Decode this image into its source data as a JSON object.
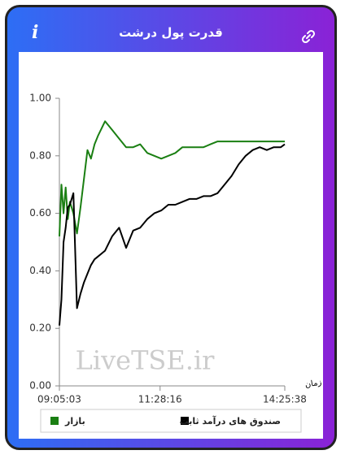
{
  "header": {
    "info_label": "i",
    "title": "قدرت پول درشت"
  },
  "watermark": "LiveTSE.ir",
  "chart_data": {
    "type": "line",
    "x_label": "زمان",
    "x": [
      "09:05:03",
      "09:08:00",
      "09:11:00",
      "09:14:00",
      "09:17:00",
      "09:20:00",
      "09:25:00",
      "09:30:00",
      "09:35:00",
      "09:40:00",
      "09:45:00",
      "09:50:00",
      "09:55:00",
      "10:00:00",
      "10:10:00",
      "10:20:00",
      "10:30:00",
      "10:40:00",
      "10:50:00",
      "11:00:00",
      "11:10:00",
      "11:20:00",
      "11:30:00",
      "11:40:00",
      "11:50:00",
      "12:00:00",
      "12:10:00",
      "12:20:00",
      "12:30:00",
      "12:40:00",
      "12:50:00",
      "13:00:00",
      "13:10:00",
      "13:20:00",
      "13:30:00",
      "13:40:00",
      "13:50:00",
      "14:00:00",
      "14:10:00",
      "14:20:00",
      "14:25:38"
    ],
    "series": [
      {
        "name": "بازار",
        "color": "#1a7f12",
        "values": [
          0.52,
          0.7,
          0.6,
          0.69,
          0.58,
          0.64,
          0.6,
          0.53,
          0.62,
          0.72,
          0.82,
          0.79,
          0.84,
          0.87,
          0.92,
          0.89,
          0.86,
          0.83,
          0.83,
          0.84,
          0.81,
          0.8,
          0.79,
          0.8,
          0.81,
          0.83,
          0.83,
          0.83,
          0.83,
          0.84,
          0.85,
          0.85,
          0.85,
          0.85,
          0.85,
          0.85,
          0.85,
          0.85,
          0.85,
          0.85,
          0.85
        ]
      },
      {
        "name": "صندوق های درآمد ثابت",
        "color": "#000000",
        "values": [
          0.21,
          0.3,
          0.5,
          0.55,
          0.62,
          0.63,
          0.67,
          0.27,
          0.32,
          0.36,
          0.39,
          0.42,
          0.44,
          0.45,
          0.47,
          0.52,
          0.55,
          0.48,
          0.54,
          0.55,
          0.58,
          0.6,
          0.61,
          0.63,
          0.63,
          0.64,
          0.65,
          0.65,
          0.66,
          0.66,
          0.67,
          0.7,
          0.73,
          0.77,
          0.8,
          0.82,
          0.83,
          0.82,
          0.83,
          0.83,
          0.84
        ]
      }
    ],
    "xlim": [
      "09:05:03",
      "14:25:38"
    ],
    "xticks": [
      "09:05:03",
      "11:28:16",
      "14:25:38"
    ],
    "ylim": [
      0,
      1
    ],
    "yticks": [
      {
        "value": 0,
        "label": "0.00"
      },
      {
        "value": 0.2,
        "label": "0.20"
      },
      {
        "value": 0.4,
        "label": "0.40"
      },
      {
        "value": 0.6,
        "label": "0.60"
      },
      {
        "value": 0.8,
        "label": "0.80"
      },
      {
        "value": 1,
        "label": "1.00"
      }
    ],
    "grid": false
  }
}
